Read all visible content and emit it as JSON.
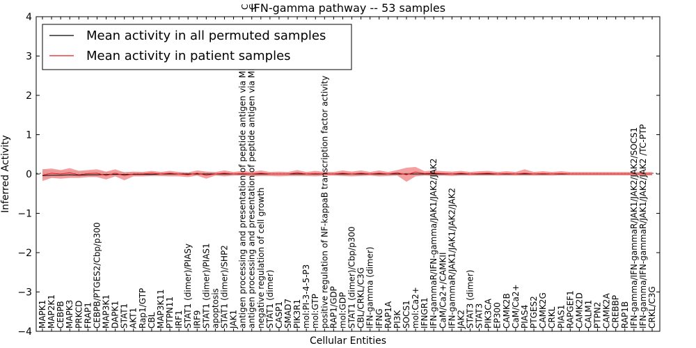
{
  "chart_data": {
    "type": "line",
    "title": "IFN-gamma pathway -- 53 samples",
    "xlabel": "Cellular Entities",
    "ylabel": "Inferred Activity",
    "ylim": [
      -4,
      4
    ],
    "yticks": [
      "4",
      "3",
      "2",
      "1",
      "0",
      "−1",
      "−2",
      "−3",
      "−4"
    ],
    "grid": false,
    "legend_position": "top-left",
    "categories": [
      "MAPK1",
      "MAP2K1",
      "CEBPB",
      "MAPK3",
      "PRKCD",
      "FRAP1",
      "CEBPB/PTGES2/Cbp/p300",
      "MAP3K1",
      "DAPK1",
      "STAT1",
      "AKT1",
      "Rap1/GTP",
      "CBL",
      "MAP3K11",
      "PTPN11",
      "IRF1",
      "STAT1 (dimer)/PIASy",
      "IRF9",
      "STAT1 (dimer)/PIAS1",
      "apoptosis",
      "STAT1 (dimer)/SHP2",
      "JAK1",
      "antigen processing and presentation of peptide antigen via MHC class I",
      "antigen processing and presentation of peptide antigen via MHC class II",
      "negative regulation of cell growth",
      "STAT1 (dimer)",
      "CASP1",
      "SMAD7",
      "PIK3R1",
      "mol:PI-3-4-5-P3",
      "mol:GTP",
      "positive regulation of NF-kappaB transcription factor activity",
      "RAP1/GDP",
      "mol:GDP",
      "STAT1 (dimer)/Cbp/p300",
      "CBL/CRKL/C3G",
      "IFN-gamma (dimer)",
      "IFNG",
      "RAP1A",
      "PI3K",
      "SOCS1",
      "mol:Ca2+",
      "IFNGR1",
      "IFN-gammaR/IFN-gamma/JAK1/JAK2/JAK2",
      "CaM/Ca2+/CAMKII",
      "IFN-gammaR/JAK1/JAK1/JAK2/JAK2",
      "JAK2",
      "STAT3 (dimer)",
      "STAT3",
      "PIK3CA",
      "EP300",
      "CAMK2B",
      "CaM/Ca2+",
      "PIAS4",
      "PTGES2",
      "CAMK2G",
      "CRKL",
      "PIAS1",
      "RAPGEF1",
      "CAMK2D",
      "CALM1",
      "PTPN2",
      "CAMK2A",
      "CREBBP",
      "RAP1B",
      "IFN-gamma/IFN-gammaR/JAK1/JAK2/JAK2/SOCS1",
      "IFN-gamma/IFN-gammaR/JAK1/JAK2/JAK2 /TC-PTP",
      "CRKL/C3G"
    ],
    "top_labels": [
      "C",
      "C"
    ],
    "series": [
      {
        "name": "Mean activity in all permuted samples",
        "color": "#000000",
        "values": [
          -0.04,
          -0.03,
          -0.03,
          -0.02,
          -0.03,
          -0.02,
          -0.02,
          -0.01,
          -0.01,
          -0.01,
          -0.01,
          -0.01,
          -0.01,
          0.0,
          0.0,
          0.0,
          0.0,
          0.0,
          0.0,
          0.0,
          0.0,
          0.0,
          0.0,
          0.0,
          0.0,
          0.0,
          0.0,
          0.0,
          0.0,
          0.0,
          0.0,
          0.0,
          0.0,
          0.0,
          0.0,
          0.0,
          0.0,
          0.0,
          0.0,
          0.0,
          0.0,
          0.0,
          0.0,
          0.0,
          0.0,
          0.0,
          0.0,
          0.0,
          0.0,
          0.0,
          0.0,
          0.0,
          0.0,
          0.0,
          0.0,
          0.0,
          0.0,
          0.0,
          0.0,
          0.0,
          0.0,
          0.0,
          0.0,
          0.0,
          0.0,
          0.0,
          0.0,
          0.0
        ],
        "band_low": [
          -0.12,
          -0.1,
          -0.08,
          -0.08,
          -0.08,
          -0.07,
          -0.07,
          -0.06,
          -0.06,
          -0.06,
          -0.05,
          -0.05,
          -0.05,
          -0.05,
          -0.04,
          -0.04,
          -0.04,
          -0.04,
          -0.04,
          -0.04,
          -0.04,
          -0.04,
          -0.04,
          -0.04,
          -0.04,
          -0.04,
          -0.04,
          -0.04,
          -0.04,
          -0.04,
          -0.04,
          -0.04,
          -0.04,
          -0.04,
          -0.04,
          -0.04,
          -0.04,
          -0.04,
          -0.04,
          -0.04,
          -0.04,
          -0.04,
          -0.04,
          -0.04,
          -0.04,
          -0.04,
          -0.04,
          -0.04,
          -0.04,
          -0.04,
          -0.04,
          -0.04,
          -0.04,
          -0.04,
          -0.04,
          -0.04,
          -0.04,
          -0.04,
          -0.04,
          -0.04,
          -0.04,
          -0.04,
          -0.04,
          -0.04,
          -0.04,
          -0.04,
          -0.04,
          -0.04
        ],
        "band_high": [
          0.12,
          0.1,
          0.08,
          0.08,
          0.08,
          0.07,
          0.07,
          0.06,
          0.06,
          0.06,
          0.05,
          0.05,
          0.05,
          0.05,
          0.04,
          0.04,
          0.04,
          0.04,
          0.04,
          0.04,
          0.04,
          0.04,
          0.04,
          0.04,
          0.04,
          0.04,
          0.04,
          0.04,
          0.04,
          0.04,
          0.04,
          0.04,
          0.04,
          0.04,
          0.04,
          0.04,
          0.04,
          0.04,
          0.04,
          0.04,
          0.04,
          0.04,
          0.04,
          0.04,
          0.04,
          0.04,
          0.04,
          0.04,
          0.04,
          0.04,
          0.04,
          0.04,
          0.04,
          0.04,
          0.04,
          0.04,
          0.04,
          0.04,
          0.04,
          0.04,
          0.04,
          0.04,
          0.04,
          0.04,
          0.04,
          0.04,
          0.04,
          0.04
        ]
      },
      {
        "name": "Mean activity in patient samples",
        "color": "#e41a1c",
        "band_color": "#f08080",
        "values": [
          -0.03,
          0.02,
          0.0,
          0.03,
          -0.02,
          0.01,
          0.02,
          -0.04,
          0.02,
          -0.04,
          0.0,
          0.0,
          0.02,
          0.0,
          0.02,
          0.0,
          -0.02,
          0.02,
          -0.03,
          0.0,
          0.02,
          0.0,
          0.01,
          0.0,
          0.02,
          0.0,
          0.0,
          0.0,
          0.03,
          0.0,
          0.01,
          0.0,
          0.0,
          0.02,
          0.0,
          0.02,
          0.0,
          0.02,
          0.0,
          0.03,
          -0.02,
          0.05,
          0.01,
          0.02,
          0.01,
          0.0,
          0.02,
          0.0,
          0.01,
          0.02,
          0.0,
          0.01,
          0.0,
          0.02,
          0.0,
          0.01,
          0.0,
          0.01,
          0.0,
          0.0,
          0.0,
          0.0,
          0.0,
          0.0,
          0.0,
          0.0,
          0.0,
          0.0
        ],
        "band_low": [
          -0.18,
          -0.1,
          -0.12,
          -0.1,
          -0.1,
          -0.08,
          -0.08,
          -0.14,
          -0.06,
          -0.16,
          -0.06,
          -0.06,
          -0.05,
          -0.05,
          -0.06,
          -0.06,
          -0.08,
          -0.04,
          -0.12,
          -0.04,
          -0.06,
          -0.04,
          -0.04,
          -0.06,
          -0.05,
          -0.05,
          -0.06,
          -0.05,
          -0.05,
          -0.05,
          -0.06,
          -0.04,
          -0.04,
          -0.05,
          -0.06,
          -0.05,
          -0.04,
          -0.06,
          -0.05,
          -0.04,
          -0.2,
          -0.06,
          -0.04,
          -0.05,
          -0.04,
          -0.05,
          -0.04,
          -0.04,
          -0.04,
          -0.04,
          -0.04,
          -0.04,
          -0.04,
          -0.04,
          -0.04,
          -0.04,
          -0.04,
          -0.03,
          -0.03,
          -0.03,
          -0.03,
          -0.03,
          -0.03,
          -0.03,
          -0.03,
          -0.03,
          -0.03,
          -0.03
        ],
        "band_high": [
          0.12,
          0.14,
          0.1,
          0.15,
          0.08,
          0.1,
          0.12,
          0.06,
          0.12,
          0.04,
          0.06,
          0.05,
          0.08,
          0.05,
          0.08,
          0.05,
          0.04,
          0.09,
          0.06,
          0.05,
          0.09,
          0.05,
          0.08,
          0.05,
          0.09,
          0.05,
          0.06,
          0.05,
          0.1,
          0.05,
          0.08,
          0.05,
          0.05,
          0.09,
          0.06,
          0.09,
          0.05,
          0.09,
          0.05,
          0.1,
          0.16,
          0.18,
          0.07,
          0.09,
          0.07,
          0.06,
          0.08,
          0.05,
          0.07,
          0.08,
          0.05,
          0.07,
          0.05,
          0.12,
          0.05,
          0.07,
          0.05,
          0.07,
          0.05,
          0.05,
          0.05,
          0.05,
          0.05,
          0.05,
          0.05,
          0.05,
          0.05,
          0.05
        ]
      }
    ]
  }
}
